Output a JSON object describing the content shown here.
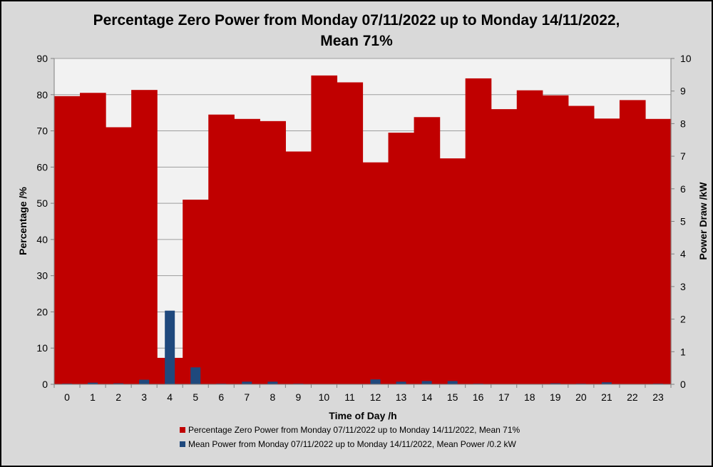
{
  "chart_data": {
    "type": "bar",
    "title_lines": [
      "Percentage Zero Power from Monday 07/11/2022 up to Monday 14/11/2022,",
      "Mean 71%"
    ],
    "xlabel": "Time of Day /h",
    "ylabel": "Percentage /%",
    "ylabel_right": "Power Draw /kW",
    "categories": [
      "0",
      "1",
      "2",
      "3",
      "4",
      "5",
      "6",
      "7",
      "8",
      "9",
      "10",
      "11",
      "12",
      "13",
      "14",
      "15",
      "16",
      "17",
      "18",
      "19",
      "20",
      "21",
      "22",
      "23"
    ],
    "ylim": [
      0,
      90
    ],
    "yticks": [
      "0",
      "10",
      "20",
      "30",
      "40",
      "50",
      "60",
      "70",
      "80",
      "90"
    ],
    "ylim_right": [
      0,
      10
    ],
    "yticks_right": [
      "0",
      "1",
      "2",
      "3",
      "4",
      "5",
      "6",
      "7",
      "8",
      "9",
      "10"
    ],
    "grid": true,
    "legend_position": "bottom",
    "series": [
      {
        "name": "Percentage Zero Power from Monday 07/11/2022 up to Monday 14/11/2022, Mean 71%",
        "axis": "left",
        "color": "#c00000",
        "values": [
          79.6,
          80.5,
          71.0,
          81.3,
          7.3,
          51.0,
          74.5,
          73.3,
          72.7,
          64.3,
          85.3,
          83.4,
          61.3,
          69.5,
          73.8,
          62.4,
          84.5,
          76.0,
          81.2,
          79.8,
          76.9,
          73.4,
          78.5,
          73.3
        ]
      },
      {
        "name": "Mean Power from Monday 07/11/2022 up to Monday 14/11/2022, Mean Power /0.2 kW",
        "axis": "right",
        "color": "#1f497d",
        "values": [
          0.02,
          0.05,
          0.03,
          0.14,
          2.26,
          0.52,
          0.02,
          0.08,
          0.08,
          0.02,
          0.01,
          0.01,
          0.15,
          0.08,
          0.1,
          0.1,
          0.02,
          0.01,
          0.01,
          0.03,
          0.02,
          0.06,
          0.01,
          0.02
        ]
      }
    ]
  }
}
